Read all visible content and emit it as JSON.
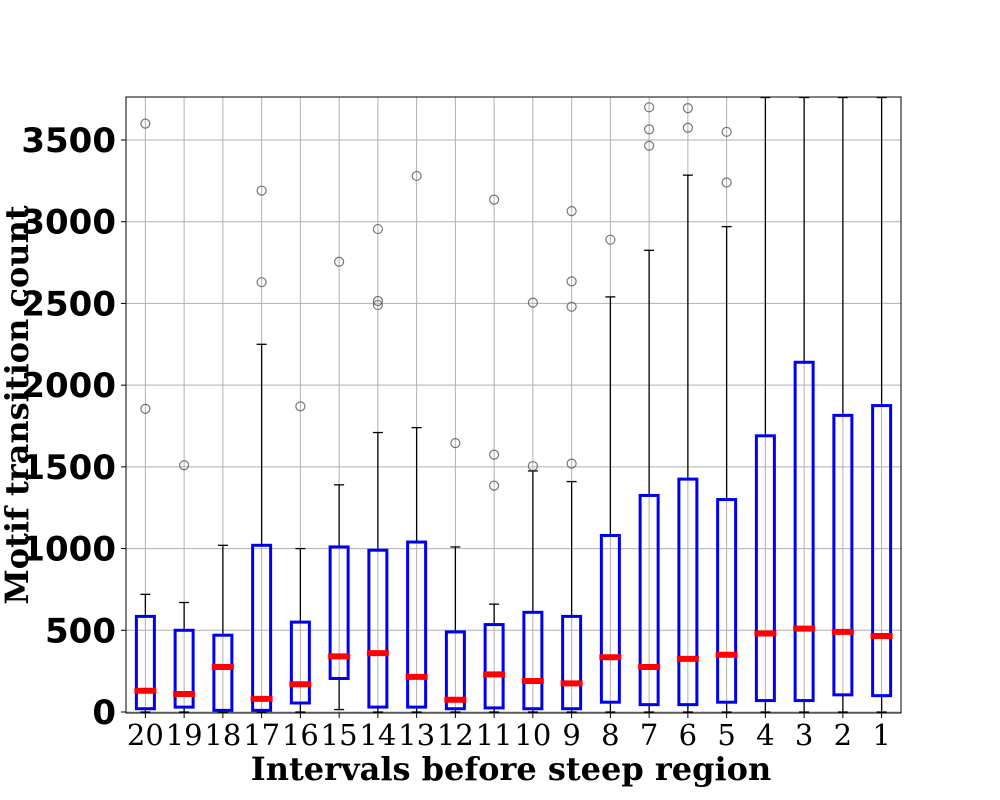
{
  "chart_data": {
    "type": "box",
    "xlabel": "Intervals before steep region",
    "ylabel": "Motif transition count",
    "ylim": [
      0,
      3760
    ],
    "yticks": [
      0,
      500,
      1000,
      1500,
      2000,
      2500,
      3000,
      3500
    ],
    "grid": true,
    "categories": [
      "20",
      "19",
      "18",
      "17",
      "16",
      "15",
      "14",
      "13",
      "12",
      "11",
      "10",
      "9",
      "8",
      "7",
      "6",
      "5",
      "4",
      "3",
      "2",
      "1"
    ],
    "boxes": [
      {
        "label": "20",
        "whislo": 0,
        "q1": 20,
        "median": 130,
        "q3": 585,
        "whishi": 720,
        "fliers": [
          1855,
          3600
        ]
      },
      {
        "label": "19",
        "whislo": 0,
        "q1": 30,
        "median": 110,
        "q3": 500,
        "whishi": 670,
        "fliers": [
          1510
        ]
      },
      {
        "label": "18",
        "whislo": 0,
        "q1": 10,
        "median": 275,
        "q3": 470,
        "whishi": 1020,
        "fliers": []
      },
      {
        "label": "17",
        "whislo": 0,
        "q1": 10,
        "median": 80,
        "q3": 1020,
        "whishi": 2250,
        "fliers": [
          2630,
          3190
        ]
      },
      {
        "label": "16",
        "whislo": 0,
        "q1": 55,
        "median": 170,
        "q3": 550,
        "whishi": 1000,
        "fliers": [
          1870
        ]
      },
      {
        "label": "15",
        "whislo": 15,
        "q1": 205,
        "median": 340,
        "q3": 1010,
        "whishi": 1390,
        "fliers": [
          2755
        ]
      },
      {
        "label": "14",
        "whislo": 0,
        "q1": 30,
        "median": 360,
        "q3": 990,
        "whishi": 1710,
        "fliers": [
          2490,
          2515,
          2955
        ]
      },
      {
        "label": "13",
        "whislo": 0,
        "q1": 30,
        "median": 215,
        "q3": 1040,
        "whishi": 1740,
        "fliers": [
          3280
        ]
      },
      {
        "label": "12",
        "whislo": 0,
        "q1": 20,
        "median": 75,
        "q3": 490,
        "whishi": 1010,
        "fliers": [
          1645
        ]
      },
      {
        "label": "11",
        "whislo": 0,
        "q1": 25,
        "median": 230,
        "q3": 535,
        "whishi": 660,
        "fliers": [
          1385,
          1575,
          3135
        ]
      },
      {
        "label": "10",
        "whislo": 0,
        "q1": 20,
        "median": 190,
        "q3": 610,
        "whishi": 1475,
        "fliers": [
          1505,
          2505
        ]
      },
      {
        "label": "9",
        "whislo": 0,
        "q1": 20,
        "median": 175,
        "q3": 585,
        "whishi": 1410,
        "fliers": [
          1520,
          2480,
          2635,
          3065
        ]
      },
      {
        "label": "8",
        "whislo": 0,
        "q1": 60,
        "median": 335,
        "q3": 1080,
        "whishi": 2540,
        "fliers": [
          2890
        ]
      },
      {
        "label": "7",
        "whislo": 0,
        "q1": 45,
        "median": 275,
        "q3": 1325,
        "whishi": 2825,
        "fliers": [
          3465,
          3565,
          3700
        ]
      },
      {
        "label": "6",
        "whislo": 0,
        "q1": 45,
        "median": 325,
        "q3": 1425,
        "whishi": 3285,
        "fliers": [
          3575,
          3695
        ]
      },
      {
        "label": "5",
        "whislo": 0,
        "q1": 60,
        "median": 350,
        "q3": 1300,
        "whishi": 2970,
        "fliers": [
          3240,
          3550
        ]
      },
      {
        "label": "4",
        "whislo": 0,
        "q1": 70,
        "median": 480,
        "q3": 1690,
        "whishi": 3760,
        "fliers": []
      },
      {
        "label": "3",
        "whislo": 0,
        "q1": 70,
        "median": 510,
        "q3": 2140,
        "whishi": 3760,
        "fliers": []
      },
      {
        "label": "2",
        "whislo": 0,
        "q1": 105,
        "median": 490,
        "q3": 1815,
        "whishi": 3760,
        "fliers": []
      },
      {
        "label": "1",
        "whislo": 0,
        "q1": 100,
        "median": 465,
        "q3": 1875,
        "whishi": 3760,
        "fliers": []
      }
    ],
    "colors": {
      "box": "#0000ee",
      "median": "#ff0000",
      "whisker": "#000000",
      "flier": "#555555",
      "grid": "#b0b0b0"
    }
  }
}
